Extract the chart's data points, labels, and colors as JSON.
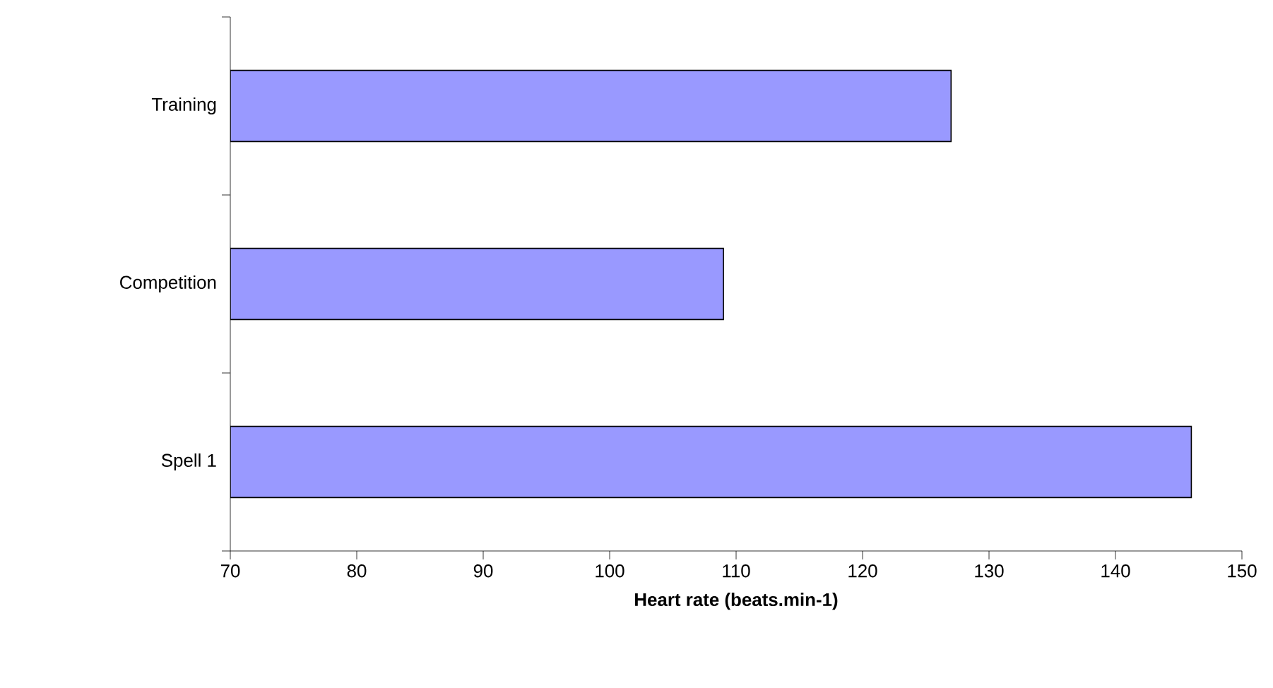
{
  "chart_data": {
    "type": "bar",
    "orientation": "horizontal",
    "categories": [
      "Training",
      "Competition",
      "Spell 1"
    ],
    "values": [
      127,
      109,
      146
    ],
    "color": "#9999ff",
    "xlim": [
      70,
      150
    ],
    "xticks": [
      70,
      80,
      90,
      100,
      110,
      120,
      130,
      140,
      150
    ],
    "xlabel": "Heart rate (beats.min-1)"
  }
}
